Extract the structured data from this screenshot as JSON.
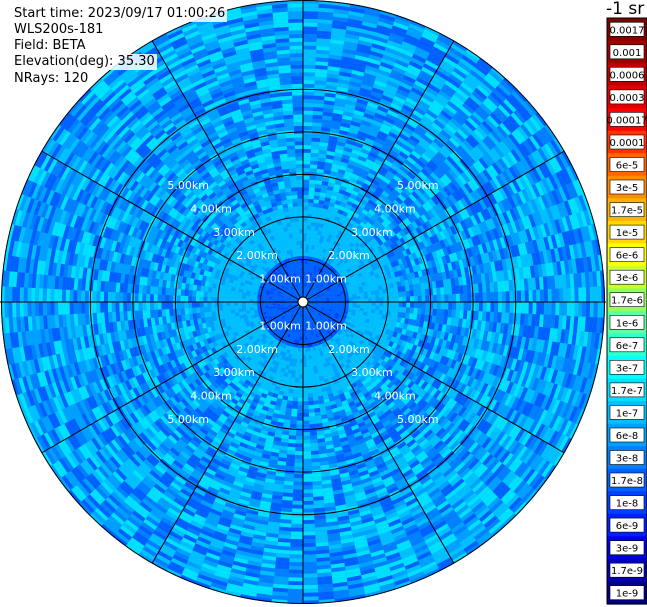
{
  "header": {
    "start_time": "Start time: 2023/09/17 01:00:26",
    "instrument": "WLS200s-181",
    "field": "Field: BETA",
    "elevation": "Elevation(deg): 35.30",
    "nrays": "NRays: 120"
  },
  "colorbar": {
    "title": "-1 sr",
    "ticks": [
      "0.0017",
      "0.001",
      "0.0006",
      "0.0003",
      "0.00017",
      "0.0001",
      "6e-5",
      "3e-5",
      "1.7e-5",
      "1e-5",
      "6e-6",
      "3e-6",
      "1.7e-6",
      "1e-6",
      "6e-7",
      "3e-7",
      "1.7e-7",
      "1e-7",
      "6e-8",
      "3e-8",
      "1.7e-8",
      "1e-8",
      "6e-9",
      "3e-9",
      "1.7e-9",
      "1e-9"
    ],
    "colors": [
      "#800000",
      "#a00000",
      "#c00000",
      "#e00000",
      "#ff0000",
      "#ff3300",
      "#ff6600",
      "#ff8c00",
      "#ffb300",
      "#ffd800",
      "#ffff00",
      "#c8ff30",
      "#90ff60",
      "#60ffa0",
      "#30ffd0",
      "#00ffff",
      "#00e0ff",
      "#00c0ff",
      "#00a0ff",
      "#0080ff",
      "#0060ff",
      "#0040ff",
      "#0020ff",
      "#0000e0",
      "#0000b0",
      "#000080"
    ]
  },
  "chart_data": {
    "type": "heatmap",
    "projection": "polar",
    "field": "BETA",
    "units": "-1 sr",
    "range_rings_km": [
      1,
      2,
      3,
      4,
      5
    ],
    "range_ring_labels": [
      "1.00km",
      "2.00km",
      "3.00km",
      "4.00km",
      "5.00km"
    ],
    "max_range_km": 7.1,
    "n_rays": 120,
    "azimuth_spokes_deg": [
      0,
      30,
      60,
      90,
      120,
      150,
      180,
      210,
      240,
      270,
      300,
      330
    ],
    "value_regions": [
      {
        "range_km": [
          0,
          1.0
        ],
        "beta": 1.7e-08
      },
      {
        "range_km": [
          1.0,
          2.2
        ],
        "beta": 1e-07
      },
      {
        "range_km": [
          2.2,
          7.1
        ],
        "beta": 6e-08,
        "note": "speckled mix of 1.7e-8 to 1e-7"
      }
    ],
    "scale": "log",
    "grid": true
  }
}
